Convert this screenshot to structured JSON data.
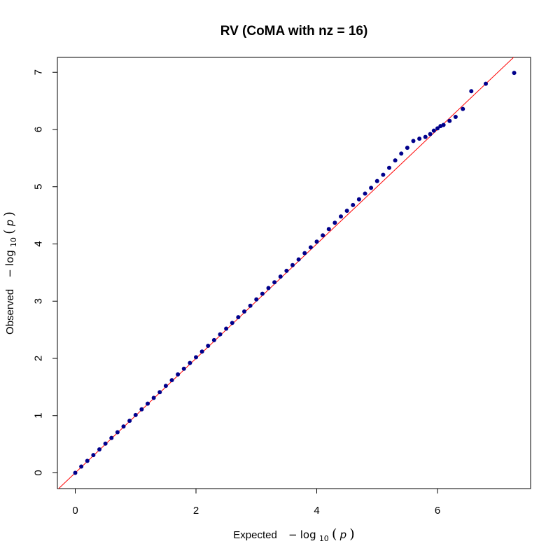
{
  "chart_data": {
    "type": "scatter",
    "title": "RV (CoMA with  nz = 16)",
    "xlabel": {
      "prefix": "Expected",
      "minus": "−",
      "log": "log",
      "base": "10",
      "open": "(",
      "var": "p",
      "close": ")"
    },
    "ylabel": {
      "prefix": "Observed",
      "minus": "−",
      "log": "log",
      "base": "10",
      "open": "(",
      "var": "p",
      "close": ")"
    },
    "xlim": [
      0,
      7.3
    ],
    "ylim": [
      0,
      7
    ],
    "x_ticks": [
      "0",
      "2",
      "4",
      "6"
    ],
    "y_ticks": [
      "0",
      "1",
      "2",
      "3",
      "4",
      "5",
      "6",
      "7"
    ],
    "grid": false,
    "point_color": "#00008B",
    "reference_line_color": "#FF0000",
    "reference_line": {
      "slope": 1,
      "intercept": 0
    },
    "series": [
      {
        "points": [
          [
            0.0,
            0.0
          ],
          [
            0.1,
            0.11
          ],
          [
            0.2,
            0.21
          ],
          [
            0.3,
            0.31
          ],
          [
            0.4,
            0.41
          ],
          [
            0.5,
            0.51
          ],
          [
            0.6,
            0.61
          ],
          [
            0.7,
            0.71
          ],
          [
            0.8,
            0.81
          ],
          [
            0.9,
            0.91
          ],
          [
            1.0,
            1.01
          ],
          [
            1.1,
            1.11
          ],
          [
            1.2,
            1.21
          ],
          [
            1.3,
            1.31
          ],
          [
            1.4,
            1.41
          ],
          [
            1.5,
            1.52
          ],
          [
            1.6,
            1.62
          ],
          [
            1.7,
            1.72
          ],
          [
            1.8,
            1.82
          ],
          [
            1.9,
            1.92
          ],
          [
            2.0,
            2.02
          ],
          [
            2.1,
            2.12
          ],
          [
            2.2,
            2.22
          ],
          [
            2.3,
            2.32
          ],
          [
            2.4,
            2.42
          ],
          [
            2.5,
            2.52
          ],
          [
            2.6,
            2.62
          ],
          [
            2.7,
            2.72
          ],
          [
            2.8,
            2.82
          ],
          [
            2.9,
            2.92
          ],
          [
            3.0,
            3.03
          ],
          [
            3.1,
            3.13
          ],
          [
            3.2,
            3.23
          ],
          [
            3.3,
            3.33
          ],
          [
            3.4,
            3.43
          ],
          [
            3.5,
            3.53
          ],
          [
            3.6,
            3.63
          ],
          [
            3.7,
            3.73
          ],
          [
            3.8,
            3.84
          ],
          [
            3.9,
            3.94
          ],
          [
            4.0,
            4.04
          ],
          [
            4.1,
            4.15
          ],
          [
            4.2,
            4.26
          ],
          [
            4.3,
            4.37
          ],
          [
            4.4,
            4.48
          ],
          [
            4.5,
            4.58
          ],
          [
            4.6,
            4.68
          ],
          [
            4.7,
            4.78
          ],
          [
            4.8,
            4.88
          ],
          [
            4.9,
            4.98
          ],
          [
            5.0,
            5.1
          ],
          [
            5.1,
            5.21
          ],
          [
            5.2,
            5.33
          ],
          [
            5.3,
            5.46
          ],
          [
            5.4,
            5.58
          ],
          [
            5.5,
            5.68
          ],
          [
            5.6,
            5.8
          ],
          [
            5.7,
            5.84
          ],
          [
            5.8,
            5.87
          ],
          [
            5.88,
            5.92
          ],
          [
            5.94,
            5.98
          ],
          [
            6.0,
            6.02
          ],
          [
            6.05,
            6.06
          ],
          [
            6.1,
            6.08
          ],
          [
            6.2,
            6.15
          ],
          [
            6.3,
            6.22
          ],
          [
            6.42,
            6.36
          ],
          [
            6.56,
            6.67
          ],
          [
            6.8,
            6.8
          ],
          [
            7.27,
            6.99
          ]
        ]
      }
    ]
  }
}
